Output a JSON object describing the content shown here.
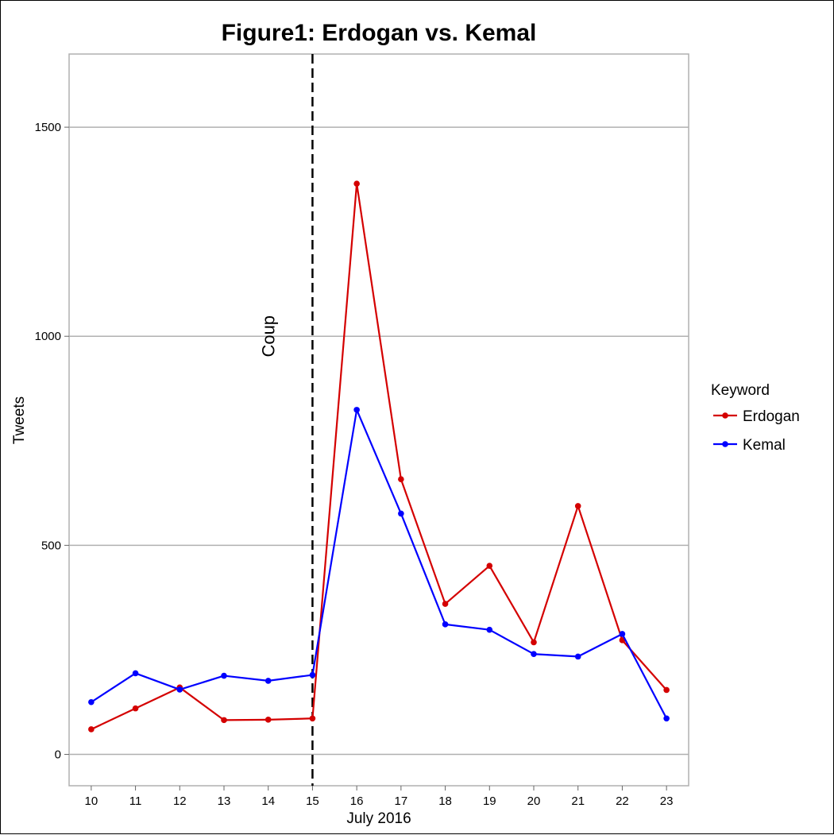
{
  "chart_data": {
    "type": "line",
    "title": "Figure1: Erdogan vs. Kemal",
    "xlabel": "July 2016",
    "ylabel": "Tweets",
    "x": [
      10,
      11,
      12,
      13,
      14,
      15,
      16,
      17,
      18,
      19,
      20,
      21,
      22,
      23
    ],
    "x_tick_labels": [
      "10",
      "11",
      "12",
      "13",
      "14",
      "15",
      "16",
      "17",
      "18",
      "19",
      "20",
      "21",
      "22",
      "23"
    ],
    "y_ticks": [
      0,
      500,
      1000,
      1500
    ],
    "y_tick_labels": [
      "0",
      "500",
      "1000",
      "1500"
    ],
    "xlim": [
      9.5,
      23.5
    ],
    "ylim": [
      -75,
      1675
    ],
    "grid": "horizontal",
    "legend": {
      "title": "Keyword",
      "placement": "right"
    },
    "series": [
      {
        "name": "Erdogan",
        "color": "#d40000",
        "values": [
          60,
          110,
          160,
          82,
          83,
          86,
          1365,
          658,
          360,
          451,
          268,
          594,
          273,
          154
        ]
      },
      {
        "name": "Kemal",
        "color": "#0000ff",
        "values": [
          125,
          194,
          155,
          188,
          176,
          190,
          824,
          576,
          311,
          298,
          240,
          234,
          288,
          86
        ]
      }
    ],
    "annotations": [
      {
        "type": "vline",
        "x": 15,
        "style": "dashed",
        "color": "#000000"
      },
      {
        "type": "text",
        "text": "Coup",
        "x": 14,
        "y": 1000,
        "rotation": -90
      }
    ]
  }
}
